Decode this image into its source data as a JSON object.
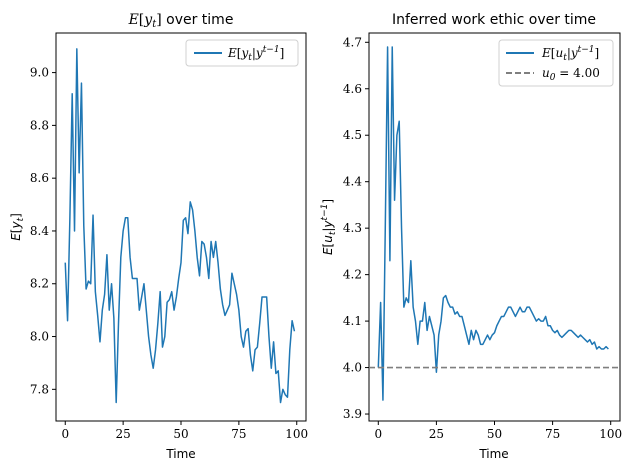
{
  "chart_data": [
    {
      "type": "line",
      "title": "E[y_t] over time",
      "xlabel": "Time",
      "ylabel": "E[y_t]",
      "xlim": [
        -4,
        104
      ],
      "ylim": [
        7.68,
        9.15
      ],
      "xticks": [
        0,
        25,
        50,
        75,
        100
      ],
      "xtick_labels": [
        "0",
        "25",
        "50",
        "75",
        "100"
      ],
      "yticks": [
        7.8,
        8.0,
        8.2,
        8.4,
        8.6,
        8.8,
        9.0
      ],
      "ytick_labels": [
        "7.8",
        "8.0",
        "8.2",
        "8.4",
        "8.6",
        "8.8",
        "9.0"
      ],
      "legend_position": "top-right",
      "series": [
        {
          "name": "E[y_t|y^{t-1}]",
          "color": "#1f77b4",
          "style": "solid",
          "x": [
            0,
            1,
            2,
            3,
            4,
            5,
            6,
            7,
            8,
            9,
            10,
            11,
            12,
            13,
            14,
            15,
            16,
            17,
            18,
            19,
            20,
            21,
            22,
            23,
            24,
            25,
            26,
            27,
            28,
            29,
            30,
            31,
            32,
            33,
            34,
            35,
            36,
            37,
            38,
            39,
            40,
            41,
            42,
            43,
            44,
            45,
            46,
            47,
            48,
            49,
            50,
            51,
            52,
            53,
            54,
            55,
            56,
            57,
            58,
            59,
            60,
            61,
            62,
            63,
            64,
            65,
            66,
            67,
            68,
            69,
            70,
            71,
            72,
            73,
            74,
            75,
            76,
            77,
            78,
            79,
            80,
            81,
            82,
            83,
            84,
            85,
            86,
            87,
            88,
            89,
            90,
            91,
            92,
            93,
            94,
            95,
            96,
            97,
            98,
            99
          ],
          "values": [
            8.28,
            8.06,
            8.45,
            8.92,
            8.4,
            9.09,
            8.62,
            8.96,
            8.42,
            8.18,
            8.21,
            8.2,
            8.46,
            8.17,
            8.08,
            7.98,
            8.1,
            8.16,
            8.31,
            8.1,
            8.2,
            8.07,
            7.75,
            8.05,
            8.3,
            8.4,
            8.45,
            8.45,
            8.3,
            8.22,
            8.22,
            8.22,
            8.1,
            8.15,
            8.2,
            8.1,
            8.0,
            7.93,
            7.88,
            7.95,
            8.05,
            8.17,
            7.96,
            8.0,
            8.13,
            8.14,
            8.17,
            8.1,
            8.15,
            8.22,
            8.28,
            8.44,
            8.45,
            8.39,
            8.51,
            8.48,
            8.4,
            8.3,
            8.23,
            8.36,
            8.35,
            8.3,
            8.22,
            8.36,
            8.3,
            8.36,
            8.28,
            8.18,
            8.12,
            8.08,
            8.1,
            8.12,
            8.24,
            8.2,
            8.16,
            8.1,
            8.0,
            7.96,
            8.02,
            8.03,
            7.93,
            7.87,
            7.95,
            7.96,
            8.05,
            8.15,
            8.15,
            8.15,
            8.0,
            7.88,
            7.98,
            7.86,
            7.87,
            7.75,
            7.8,
            7.78,
            7.77,
            7.95,
            8.06,
            8.02
          ]
        }
      ]
    },
    {
      "type": "line",
      "title": "Inferred work ethic over time",
      "xlabel": "Time",
      "ylabel": "E[u_t|y^{t-1}]",
      "xlim": [
        -4,
        104
      ],
      "ylim": [
        3.885,
        4.72
      ],
      "xticks": [
        0,
        25,
        50,
        75,
        100
      ],
      "xtick_labels": [
        "0",
        "25",
        "50",
        "75",
        "100"
      ],
      "yticks": [
        3.9,
        4.0,
        4.1,
        4.2,
        4.3,
        4.4,
        4.5,
        4.6,
        4.7
      ],
      "ytick_labels": [
        "3.9",
        "4.0",
        "4.1",
        "4.2",
        "4.3",
        "4.4",
        "4.5",
        "4.6",
        "4.7"
      ],
      "legend_position": "top-right",
      "series": [
        {
          "name": "E[u_t|y^{t-1}]",
          "color": "#1f77b4",
          "style": "solid",
          "x": [
            0,
            1,
            2,
            3,
            4,
            5,
            6,
            7,
            8,
            9,
            10,
            11,
            12,
            13,
            14,
            15,
            16,
            17,
            18,
            19,
            20,
            21,
            22,
            23,
            24,
            25,
            26,
            27,
            28,
            29,
            30,
            31,
            32,
            33,
            34,
            35,
            36,
            37,
            38,
            39,
            40,
            41,
            42,
            43,
            44,
            45,
            46,
            47,
            48,
            49,
            50,
            51,
            52,
            53,
            54,
            55,
            56,
            57,
            58,
            59,
            60,
            61,
            62,
            63,
            64,
            65,
            66,
            67,
            68,
            69,
            70,
            71,
            72,
            73,
            74,
            75,
            76,
            77,
            78,
            79,
            80,
            81,
            82,
            83,
            84,
            85,
            86,
            87,
            88,
            89,
            90,
            91,
            92,
            93,
            94,
            95,
            96,
            97,
            98,
            99
          ],
          "values": [
            4.0,
            4.14,
            3.93,
            4.3,
            4.69,
            4.23,
            4.69,
            4.36,
            4.5,
            4.53,
            4.3,
            4.13,
            4.15,
            4.14,
            4.23,
            4.13,
            4.1,
            4.05,
            4.1,
            4.1,
            4.14,
            4.08,
            4.11,
            4.09,
            4.07,
            3.99,
            4.07,
            4.1,
            4.15,
            4.155,
            4.14,
            4.13,
            4.13,
            4.115,
            4.12,
            4.11,
            4.11,
            4.09,
            4.07,
            4.05,
            4.08,
            4.06,
            4.08,
            4.07,
            4.05,
            4.05,
            4.06,
            4.07,
            4.06,
            4.07,
            4.075,
            4.09,
            4.1,
            4.11,
            4.11,
            4.12,
            4.13,
            4.13,
            4.12,
            4.11,
            4.12,
            4.13,
            4.12,
            4.12,
            4.13,
            4.13,
            4.12,
            4.11,
            4.1,
            4.105,
            4.1,
            4.1,
            4.11,
            4.09,
            4.09,
            4.08,
            4.075,
            4.08,
            4.07,
            4.065,
            4.07,
            4.075,
            4.08,
            4.08,
            4.075,
            4.07,
            4.065,
            4.07,
            4.065,
            4.06,
            4.055,
            4.06,
            4.05,
            4.055,
            4.04,
            4.045,
            4.04,
            4.04,
            4.045,
            4.04
          ]
        },
        {
          "name": "u_0 = 4.00",
          "color": "#7f7f7f",
          "style": "dashed",
          "hline": 4.0
        }
      ]
    }
  ]
}
